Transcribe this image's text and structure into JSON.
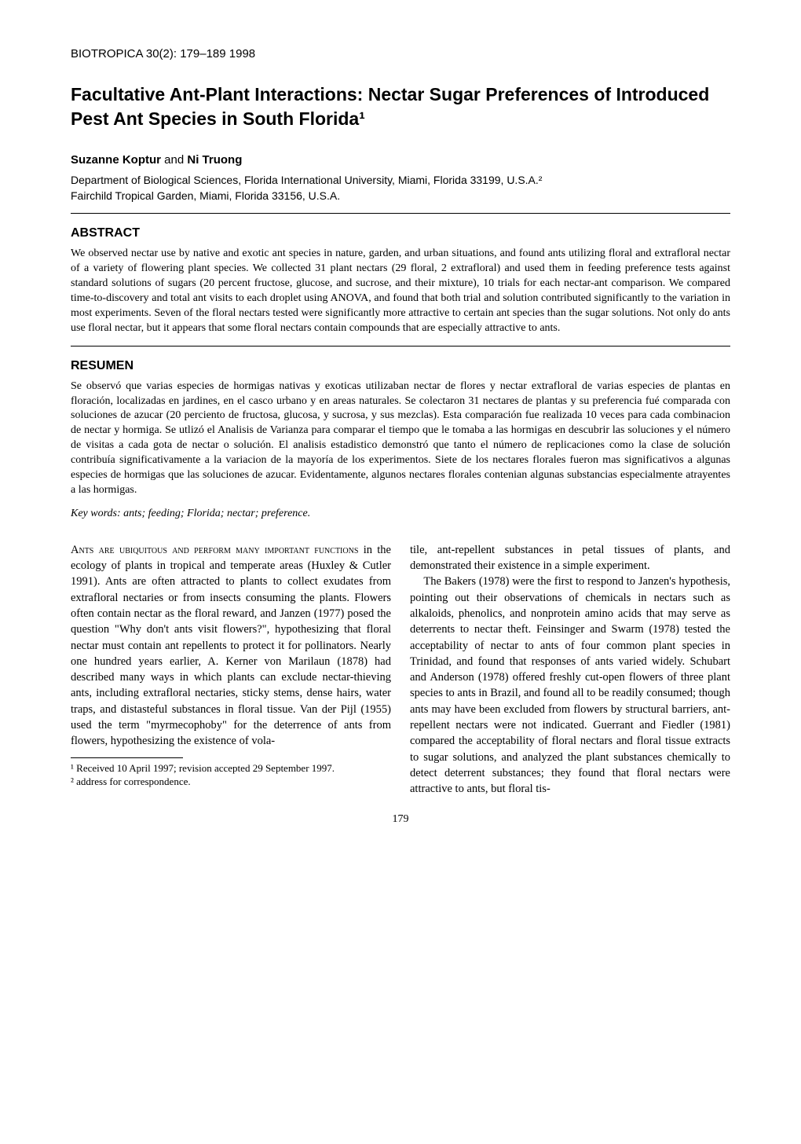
{
  "citation": "BIOTROPICA 30(2): 179–189   1998",
  "title": "Facultative Ant-Plant Interactions: Nectar Sugar Preferences of Introduced Pest Ant Species in South Florida¹",
  "author1": "Suzanne Koptur",
  "and": " and ",
  "author2": "Ni Truong",
  "affiliation_line1": "Department of Biological Sciences, Florida International University, Miami, Florida 33199, U.S.A.²",
  "affiliation_line2": "Fairchild Tropical Garden, Miami, Florida 33156, U.S.A.",
  "abstract_heading": "ABSTRACT",
  "abstract_text": "We observed nectar use by native and exotic ant species in nature, garden, and urban situations, and found ants utilizing floral and extrafloral nectar of a variety of flowering plant species. We collected 31 plant nectars (29 floral, 2 extrafloral) and used them in feeding preference tests against standard solutions of sugars (20 percent fructose, glucose, and sucrose, and their mixture), 10 trials for each nectar-ant comparison. We compared time-to-discovery and total ant visits to each droplet using ANOVA, and found that both trial and solution contributed significantly to the variation in most experiments. Seven of the floral nectars tested were significantly more attractive to certain ant species than the sugar solutions. Not only do ants use floral nectar, but it appears that some floral nectars contain compounds that are especially attractive to ants.",
  "resumen_heading": "RESUMEN",
  "resumen_text": "Se observó que varias especies de hormigas nativas y exoticas utilizaban nectar de flores y nectar extrafloral de varias especies de plantas en floración, localizadas en jardines, en el casco urbano y en areas naturales. Se colectaron 31 nectares de plantas y su preferencia fué comparada con soluciones de azucar (20 perciento de fructosa, glucosa, y sucrosa, y sus mezclas). Esta comparación fue realizada 10 veces para cada combinacion de nectar y hormiga. Se utlizó el Analisis de Varianza para comparar el tiempo que le tomaba a las hormigas en descubrir las soluciones y el número de visitas a cada gota de nectar o solución. El analisis estadistico demonstró que tanto el número de replicaciones como la clase de solución contribuía significativamente a la variacion de la mayoría de los experimentos. Siete de los nectares florales fueron mas significativos a algunas especies de hormigas que las soluciones de azucar. Evidentamente, algunos nectares florales contenian algunas substancias especialmente atrayentes a las hormigas.",
  "keywords_label": "Key words:   ",
  "keywords_text": "ants; feeding; Florida; nectar; preference.",
  "col1_smallcaps": "Ants are ubiquitous and perform many important functions",
  "col1_text": " in the ecology of plants in tropical and temperate areas (Huxley & Cutler 1991). Ants are often attracted to plants to collect exudates from extrafloral nectaries or from insects consuming the plants. Flowers often contain nectar as the floral reward, and Janzen (1977) posed the question \"Why don't ants visit flowers?\", hypothesizing that floral nectar must contain ant repellents to protect it for pollinators. Nearly one hundred years earlier, A. Kerner von Marilaun (1878) had described many ways in which plants can exclude nectar-thieving ants, including extrafloral nectaries, sticky stems, dense hairs, water traps, and distasteful substances in floral tissue. Van der Pijl (1955) used the term \"myrmecophoby\" for the deterrence of ants from flowers, hypothesizing the existence of vola-",
  "footnote1": "¹ Received 10 April 1997; revision accepted 29 September 1997.",
  "footnote2": "² address for correspondence.",
  "col2_para1": "tile, ant-repellent substances in petal tissues of plants, and demonstrated their existence in a simple experiment.",
  "col2_para2": "The Bakers (1978) were the first to respond to Janzen's hypothesis, pointing out their observations of chemicals in nectars such as alkaloids, phenolics, and nonprotein amino acids that may serve as deterrents to nectar theft. Feinsinger and Swarm (1978) tested the acceptability of nectar to ants of four common plant species in Trinidad, and found that responses of ants varied widely. Schubart and Anderson (1978) offered freshly cut-open flowers of three plant species to ants in Brazil, and found all to be readily consumed; though ants may have been excluded from flowers by structural barriers, ant-repellent nectars were not indicated. Guerrant and Fiedler (1981) compared the acceptability of floral nectars and floral tissue extracts to sugar solutions, and analyzed the plant substances chemically to detect deterrent substances; they found that floral nectars were attractive to ants, but floral tis-",
  "page_number": "179"
}
